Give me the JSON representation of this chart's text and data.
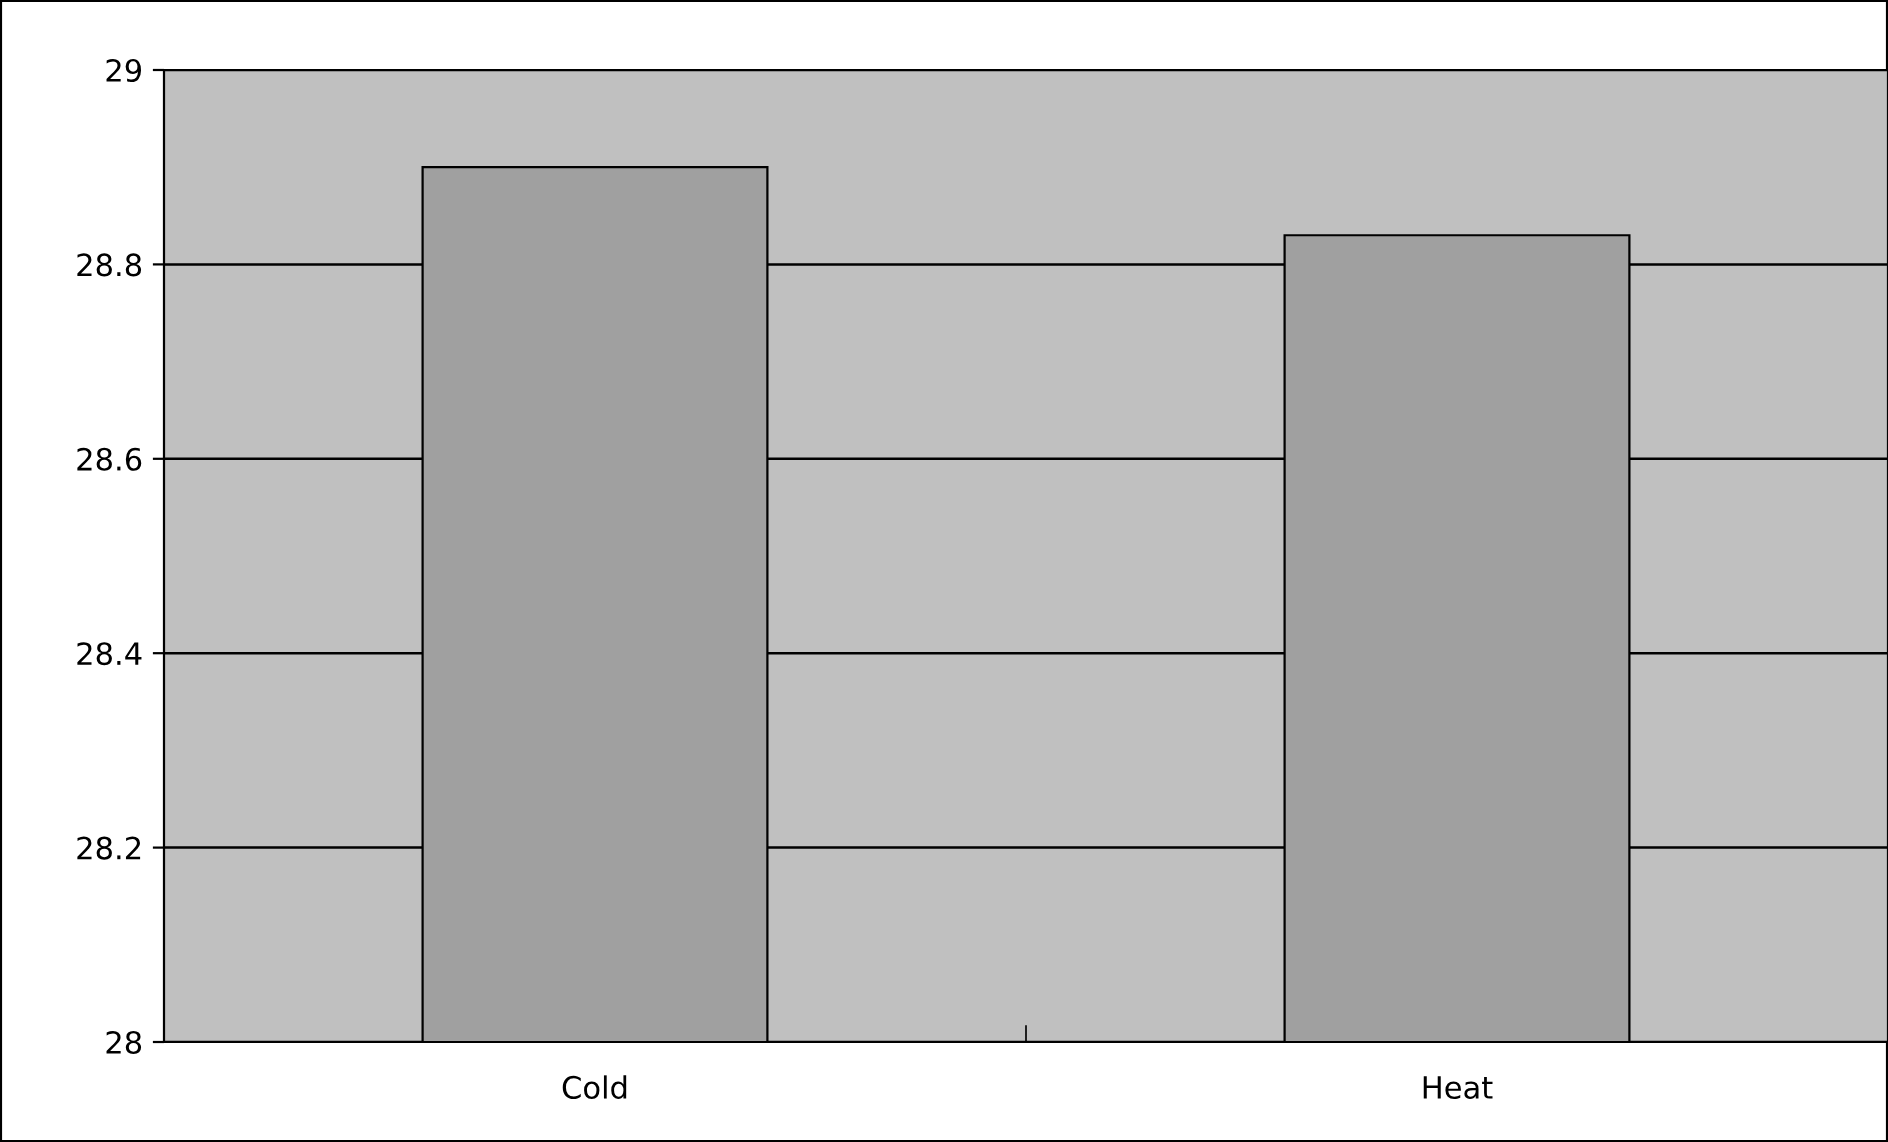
{
  "chart_data": {
    "type": "bar",
    "categories": [
      "Cold",
      "Heat"
    ],
    "values": [
      28.9,
      28.83
    ],
    "color": "#a0a0a0",
    "ylim": [
      28,
      29
    ],
    "yticks": [
      28,
      28.2,
      28.4,
      28.6,
      28.8,
      29
    ],
    "grid": "y",
    "legend": false
  }
}
